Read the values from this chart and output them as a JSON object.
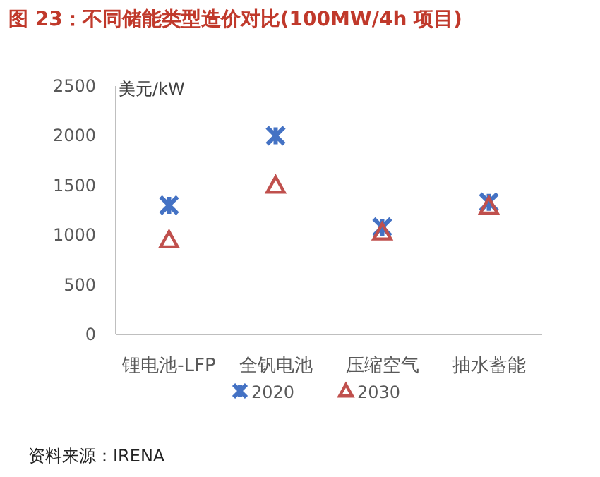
{
  "chart_data": {
    "type": "scatter",
    "title": "图 23：不同储能类型造价对比(100MW/4h 项目)",
    "ylabel": "美元/kW",
    "categories": [
      "锂电池-LFP",
      "全钒电池",
      "压缩空气",
      "抽水蓄能"
    ],
    "series": [
      {
        "name": "2020",
        "color": "#4472c4",
        "marker": "cross",
        "values": [
          1300,
          2000,
          1080,
          1330
        ]
      },
      {
        "name": "2030",
        "color": "#c0504d",
        "marker": "triangle",
        "values": [
          950,
          1500,
          1030,
          1290
        ]
      }
    ],
    "ylim": [
      0,
      2500
    ],
    "yticks": [
      0,
      500,
      1000,
      1500,
      2000,
      2500
    ],
    "legend": "bottom",
    "annotations": [
      "资料来源：IRENA"
    ]
  }
}
